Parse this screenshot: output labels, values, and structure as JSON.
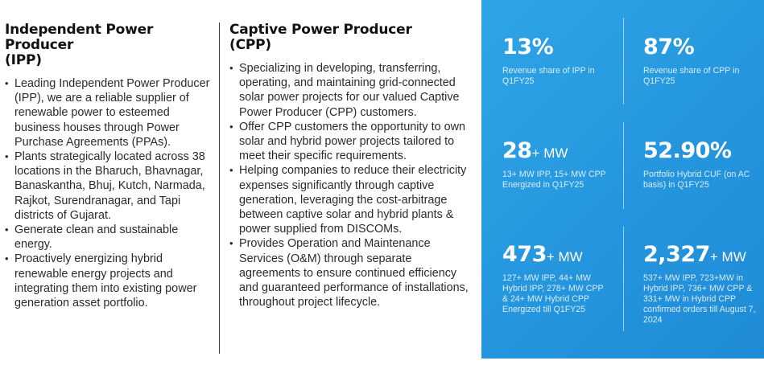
{
  "ipp": {
    "title_line1": "Independent Power Producer",
    "title_line2": "(IPP)",
    "bullets": [
      "Leading Independent Power Producer (IPP), we are a reliable supplier of renewable power to esteemed business houses through Power Purchase Agreements (PPAs).",
      "Plants strategically located across 38 locations in the Bharuch, Bhavnagar, Banaskantha, Bhuj, Kutch, Narmada,  Rajkot, Surendranagar,  and Tapi districts of Gujarat.",
      "Generate clean and sustainable energy.",
      "Proactively energizing hybrid renewable energy projects and integrating them into existing power generation asset portfolio."
    ]
  },
  "cpp": {
    "title_line1": "Captive Power Producer",
    "title_line2": "(CPP)",
    "bullets": [
      "Specializing in developing, transferring, operating, and maintaining grid-connected solar power projects for our valued Captive Power Producer (CPP) customers.",
      "Offer CPP customers the opportunity to own solar and hybrid power projects tailored to meet their specific requirements.",
      "Helping companies to reduce their electricity expenses significantly through captive generation, leveraging the cost-arbitrage between captive solar and hybrid plants & power supplied from DISCOMs.",
      "Provides Operation and Maintenance Services (O&M) through separate agreements to ensure continued efficiency and guaranteed performance of installations, throughout project lifecycle."
    ]
  },
  "stats": [
    {
      "value": "13",
      "suffix": "%",
      "description": "Revenue share of IPP in Q1FY25"
    },
    {
      "value": "87",
      "suffix": "%",
      "description": "Revenue share of CPP in Q1FY25"
    },
    {
      "value": "28",
      "suffix": "+ MW",
      "description": "13+ MW IPP, 15+ MW CPP Energized in Q1FY25"
    },
    {
      "value": "52.90",
      "suffix": "%",
      "description": "Portfolio Hybrid CUF (on AC basis) in Q1FY25"
    },
    {
      "value": "473",
      "suffix": "+ MW",
      "description": "127+ MW IPP, 44+ MW Hybrid IPP, 278+ MW CPP & 24+ MW Hybrid CPP Energized till Q1FY25"
    },
    {
      "value": "2,327",
      "suffix": "+ MW",
      "description": "537+ MW IPP, 723+MW in Hybrid IPP, 736+ MW CPP & 331+ MW in Hybrid CPP confirmed orders till August 7, 2024"
    }
  ],
  "colors": {
    "panel_blue": "#2596de",
    "title_text": "#111111",
    "body_text": "#2b2b2b"
  }
}
